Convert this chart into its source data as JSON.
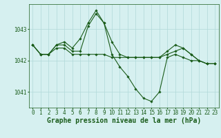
{
  "title": "Graphe pression niveau de la mer (hPa)",
  "background_color": "#d6f0f0",
  "grid_color": "#b0d8d8",
  "line_color": "#1a5c1a",
  "x_labels": [
    "0",
    "1",
    "2",
    "3",
    "4",
    "5",
    "6",
    "7",
    "8",
    "9",
    "10",
    "11",
    "12",
    "13",
    "14",
    "15",
    "16",
    "17",
    "18",
    "19",
    "20",
    "21",
    "22",
    "23"
  ],
  "ylim": [
    1040.5,
    1043.8
  ],
  "yticks": [
    1041,
    1042,
    1043
  ],
  "series": [
    [
      1042.5,
      1042.2,
      1042.2,
      1042.4,
      1042.4,
      1042.2,
      1042.2,
      1042.2,
      1042.2,
      1042.2,
      1042.1,
      1042.1,
      1042.1,
      1042.1,
      1042.1,
      1042.1,
      1042.1,
      1042.2,
      1042.3,
      1042.4,
      1042.2,
      1042.0,
      1041.9,
      1041.9
    ],
    [
      1042.5,
      1042.2,
      1042.2,
      1042.5,
      1042.5,
      1042.3,
      1042.3,
      1043.1,
      1043.5,
      1043.2,
      1042.6,
      1042.2,
      1042.1,
      1042.1,
      1042.1,
      1042.1,
      1042.1,
      1042.3,
      1042.5,
      1042.4,
      1042.2,
      1042.0,
      1041.9,
      1041.9
    ],
    [
      1042.5,
      1042.2,
      1042.2,
      1042.5,
      1042.6,
      1042.4,
      1042.7,
      1043.2,
      1043.6,
      1043.2,
      1042.2,
      1041.8,
      1041.5,
      1041.1,
      1040.8,
      1040.7,
      1041.0,
      1042.1,
      1042.2,
      1042.1,
      1042.0,
      1042.0,
      1041.9,
      1041.9
    ]
  ],
  "marker": "D",
  "marker_size": 1.8,
  "line_width": 0.8,
  "title_fontsize": 7,
  "tick_fontsize": 5.5,
  "ylabel_fontsize": 5.5
}
